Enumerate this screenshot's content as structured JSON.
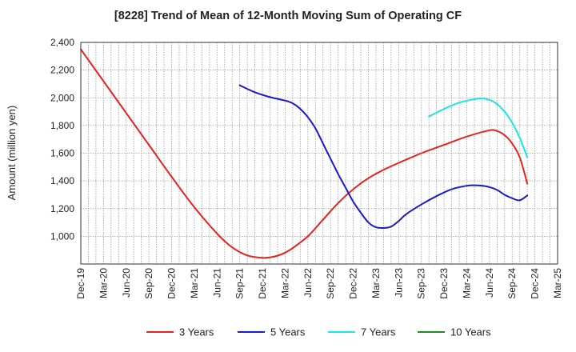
{
  "chart_data": {
    "type": "line",
    "title": "[8228]  Trend of Mean of 12-Month Moving Sum of Operating CF",
    "xlabel": "",
    "ylabel": "Amount (million yen)",
    "ylim": [
      800,
      2400
    ],
    "yticks": [
      1000,
      1200,
      1400,
      1600,
      1800,
      2000,
      2200,
      2400
    ],
    "ytick_labels": [
      "1,000",
      "1,200",
      "1,400",
      "1,600",
      "1,800",
      "2,000",
      "2,200",
      "2,400"
    ],
    "x_tick_labels": [
      "Dec-19",
      "Mar-20",
      "Jun-20",
      "Sep-20",
      "Dec-20",
      "Mar-21",
      "Jun-21",
      "Sep-21",
      "Dec-21",
      "Mar-22",
      "Jun-22",
      "Sep-22",
      "Dec-22",
      "Mar-23",
      "Jun-23",
      "Sep-23",
      "Dec-23",
      "Mar-24",
      "Jun-24",
      "Sep-24",
      "Dec-24",
      "Mar-25"
    ],
    "x_index_note": "x = month index from Dec-19 (0) to Mar-25 (63)",
    "grid": true,
    "series": [
      {
        "name": "3 Years",
        "color": "#e8211c",
        "x": [
          0,
          3,
          6,
          9,
          12,
          15,
          18,
          20,
          22,
          24,
          25,
          26,
          27,
          28,
          30,
          32,
          34,
          36,
          38,
          40,
          42,
          45,
          48,
          51,
          54,
          55,
          56,
          57,
          58,
          59
        ],
        "y": [
          2350,
          2120,
          1890,
          1660,
          1430,
          1210,
          1020,
          920,
          862,
          845,
          848,
          860,
          882,
          915,
          1000,
          1120,
          1240,
          1340,
          1420,
          1480,
          1530,
          1600,
          1660,
          1720,
          1765,
          1760,
          1730,
          1670,
          1570,
          1380
        ]
      },
      {
        "name": "5 Years",
        "color": "#1a1acc",
        "x": [
          21,
          23,
          25,
          27,
          28,
          29,
          30,
          31,
          32,
          33,
          34,
          35,
          36,
          37,
          38,
          39,
          40,
          41,
          42,
          43,
          45,
          47,
          49,
          51,
          52,
          53,
          54,
          55,
          56,
          57,
          58,
          59
        ],
        "y": [
          2090,
          2040,
          2005,
          1980,
          1960,
          1920,
          1860,
          1780,
          1670,
          1560,
          1450,
          1350,
          1250,
          1170,
          1100,
          1065,
          1060,
          1070,
          1110,
          1160,
          1230,
          1290,
          1340,
          1365,
          1368,
          1365,
          1355,
          1335,
          1300,
          1275,
          1260,
          1295
        ]
      },
      {
        "name": "7 Years",
        "color": "#19e6e6",
        "x": [
          46,
          48,
          50,
          52,
          53,
          54,
          55,
          56,
          57,
          58,
          59
        ],
        "y": [
          1865,
          1920,
          1965,
          1990,
          1995,
          1985,
          1955,
          1900,
          1820,
          1710,
          1570
        ]
      },
      {
        "name": "10 Years",
        "color": "#1f8a1f",
        "x": [],
        "y": []
      }
    ]
  }
}
